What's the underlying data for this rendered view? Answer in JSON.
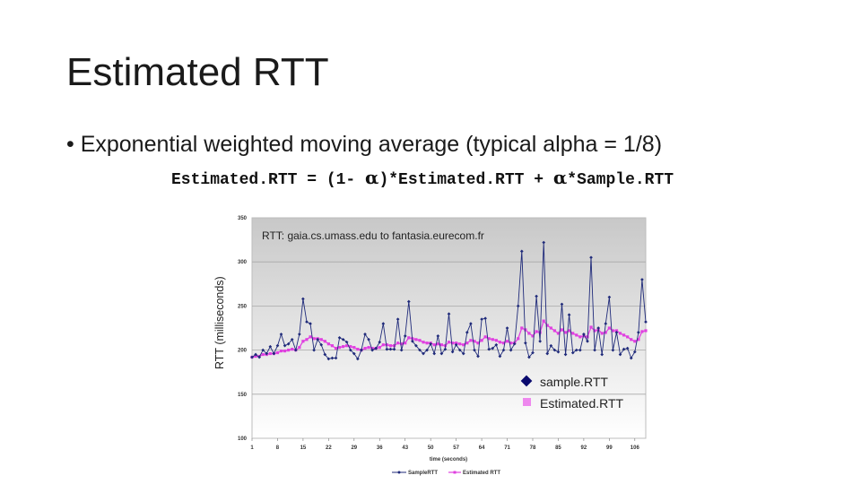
{
  "slide": {
    "title": "Estimated RTT",
    "bullet": "• Exponential weighted moving average (typical alpha = 1/8)",
    "formula": {
      "part1": "Estimated.RTT = (1- ",
      "alpha": "α",
      "part2": ")*Estimated.RTT + ",
      "part3": "*Sample.RTT"
    }
  },
  "chart_data": {
    "type": "line",
    "title": "RTT: gaia.cs.umass.edu to fantasia.eurecom.fr",
    "xlabel": "time (seconds)",
    "ylabel": "RTT (milliseconds)",
    "ylim": [
      100,
      350
    ],
    "xlim": [
      1,
      109
    ],
    "yticks": [
      100,
      150,
      200,
      250,
      300,
      350
    ],
    "xticks": [
      1,
      8,
      15,
      22,
      29,
      36,
      43,
      50,
      57,
      64,
      71,
      78,
      85,
      92,
      99,
      106
    ],
    "x": [
      1,
      2,
      3,
      4,
      5,
      6,
      7,
      8,
      9,
      10,
      11,
      12,
      13,
      14,
      15,
      16,
      17,
      18,
      19,
      20,
      21,
      22,
      23,
      24,
      25,
      26,
      27,
      28,
      29,
      30,
      31,
      32,
      33,
      34,
      35,
      36,
      37,
      38,
      39,
      40,
      41,
      42,
      43,
      44,
      45,
      46,
      47,
      48,
      49,
      50,
      51,
      52,
      53,
      54,
      55,
      56,
      57,
      58,
      59,
      60,
      61,
      62,
      63,
      64,
      65,
      66,
      67,
      68,
      69,
      70,
      71,
      72,
      73,
      74,
      75,
      76,
      77,
      78,
      79,
      80,
      81,
      82,
      83,
      84,
      85,
      86,
      87,
      88,
      89,
      90,
      91,
      92,
      93,
      94,
      95,
      96,
      97,
      98,
      99,
      100,
      101,
      102,
      103,
      104,
      105,
      106,
      107,
      108,
      109
    ],
    "series": [
      {
        "name": "sample.RTT",
        "color": "#1f2a7a",
        "values": [
          192,
          195,
          192,
          200,
          196,
          204,
          196,
          205,
          218,
          205,
          207,
          212,
          200,
          218,
          258,
          232,
          230,
          200,
          212,
          206,
          195,
          190,
          191,
          191,
          214,
          212,
          209,
          200,
          196,
          190,
          200,
          218,
          212,
          200,
          202,
          209,
          230,
          201,
          201,
          201,
          235,
          200,
          216,
          255,
          210,
          205,
          200,
          196,
          200,
          207,
          196,
          216,
          196,
          201,
          241,
          198,
          206,
          200,
          196,
          220,
          230,
          200,
          193,
          235,
          236,
          201,
          202,
          206,
          193,
          200,
          225,
          200,
          207,
          250,
          312,
          208,
          192,
          197,
          261,
          210,
          322,
          196,
          205,
          200,
          198,
          252,
          195,
          240,
          197,
          200,
          200,
          218,
          210,
          305,
          200,
          225,
          195,
          230,
          260,
          200,
          220,
          195,
          201,
          202,
          191,
          198,
          220,
          280,
          232
        ]
      },
      {
        "name": "Estimated.RTT",
        "color": "#e040e0",
        "values": [
          192,
          193,
          193,
          195,
          195,
          196,
          196,
          197,
          199,
          199,
          200,
          201,
          200,
          203,
          210,
          212,
          215,
          213,
          213,
          212,
          210,
          207,
          205,
          202,
          203,
          204,
          205,
          204,
          203,
          201,
          200,
          202,
          203,
          202,
          202,
          203,
          206,
          206,
          205,
          205,
          208,
          207,
          208,
          214,
          213,
          212,
          211,
          209,
          208,
          208,
          206,
          207,
          206,
          205,
          209,
          208,
          208,
          207,
          206,
          208,
          211,
          210,
          208,
          211,
          215,
          213,
          212,
          211,
          209,
          208,
          210,
          208,
          208,
          213,
          225,
          223,
          219,
          216,
          221,
          220,
          233,
          228,
          225,
          222,
          219,
          223,
          220,
          222,
          219,
          217,
          215,
          216,
          215,
          226,
          222,
          223,
          219,
          220,
          225,
          222,
          222,
          219,
          217,
          215,
          212,
          210,
          212,
          221,
          222
        ]
      }
    ],
    "legend": [
      "sample.RTT",
      "Estimated.RTT"
    ],
    "bottom_legend": [
      "SampleRTT",
      "Estimated RTT"
    ]
  }
}
